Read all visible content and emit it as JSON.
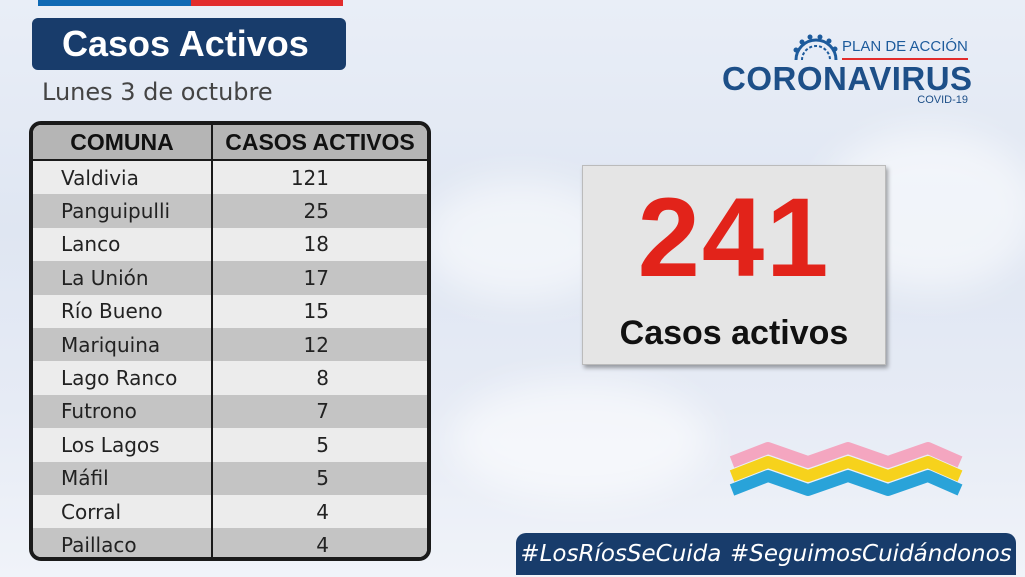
{
  "title": "Casos Activos",
  "date": "Lunes 3 de octubre",
  "logo": {
    "plan": "PLAN DE ACCIÓN",
    "name": "CORONAVIRUS",
    "sub": "COVID-19"
  },
  "table": {
    "headers": [
      "COMUNA",
      "CASOS ACTIVOS"
    ],
    "rows": [
      {
        "comuna": "Valdivia",
        "casos": "121"
      },
      {
        "comuna": "Panguipulli",
        "casos": "25"
      },
      {
        "comuna": "Lanco",
        "casos": "18"
      },
      {
        "comuna": "La Unión",
        "casos": "17"
      },
      {
        "comuna": "Río Bueno",
        "casos": "15"
      },
      {
        "comuna": "Mariquina",
        "casos": "12"
      },
      {
        "comuna": "Lago Ranco",
        "casos": "8"
      },
      {
        "comuna": "Futrono",
        "casos": "7"
      },
      {
        "comuna": "Los Lagos",
        "casos": "5"
      },
      {
        "comuna": "Máfil",
        "casos": "5"
      },
      {
        "comuna": "Corral",
        "casos": "4"
      },
      {
        "comuna": "Paillaco",
        "casos": "4"
      }
    ]
  },
  "total": {
    "value": "241",
    "label": "Casos activos"
  },
  "hashtags": [
    "#LosRíosSeCuida",
    "#SeguimosCuidándonos"
  ],
  "colors": {
    "navy": "#183c6b",
    "red": "#e2231a",
    "flag_blue": "#0f69b4",
    "flag_red": "#e22c2c",
    "wave_pink": "#f4a6c0",
    "wave_yellow": "#f6d21c",
    "wave_blue": "#29a3d9"
  }
}
